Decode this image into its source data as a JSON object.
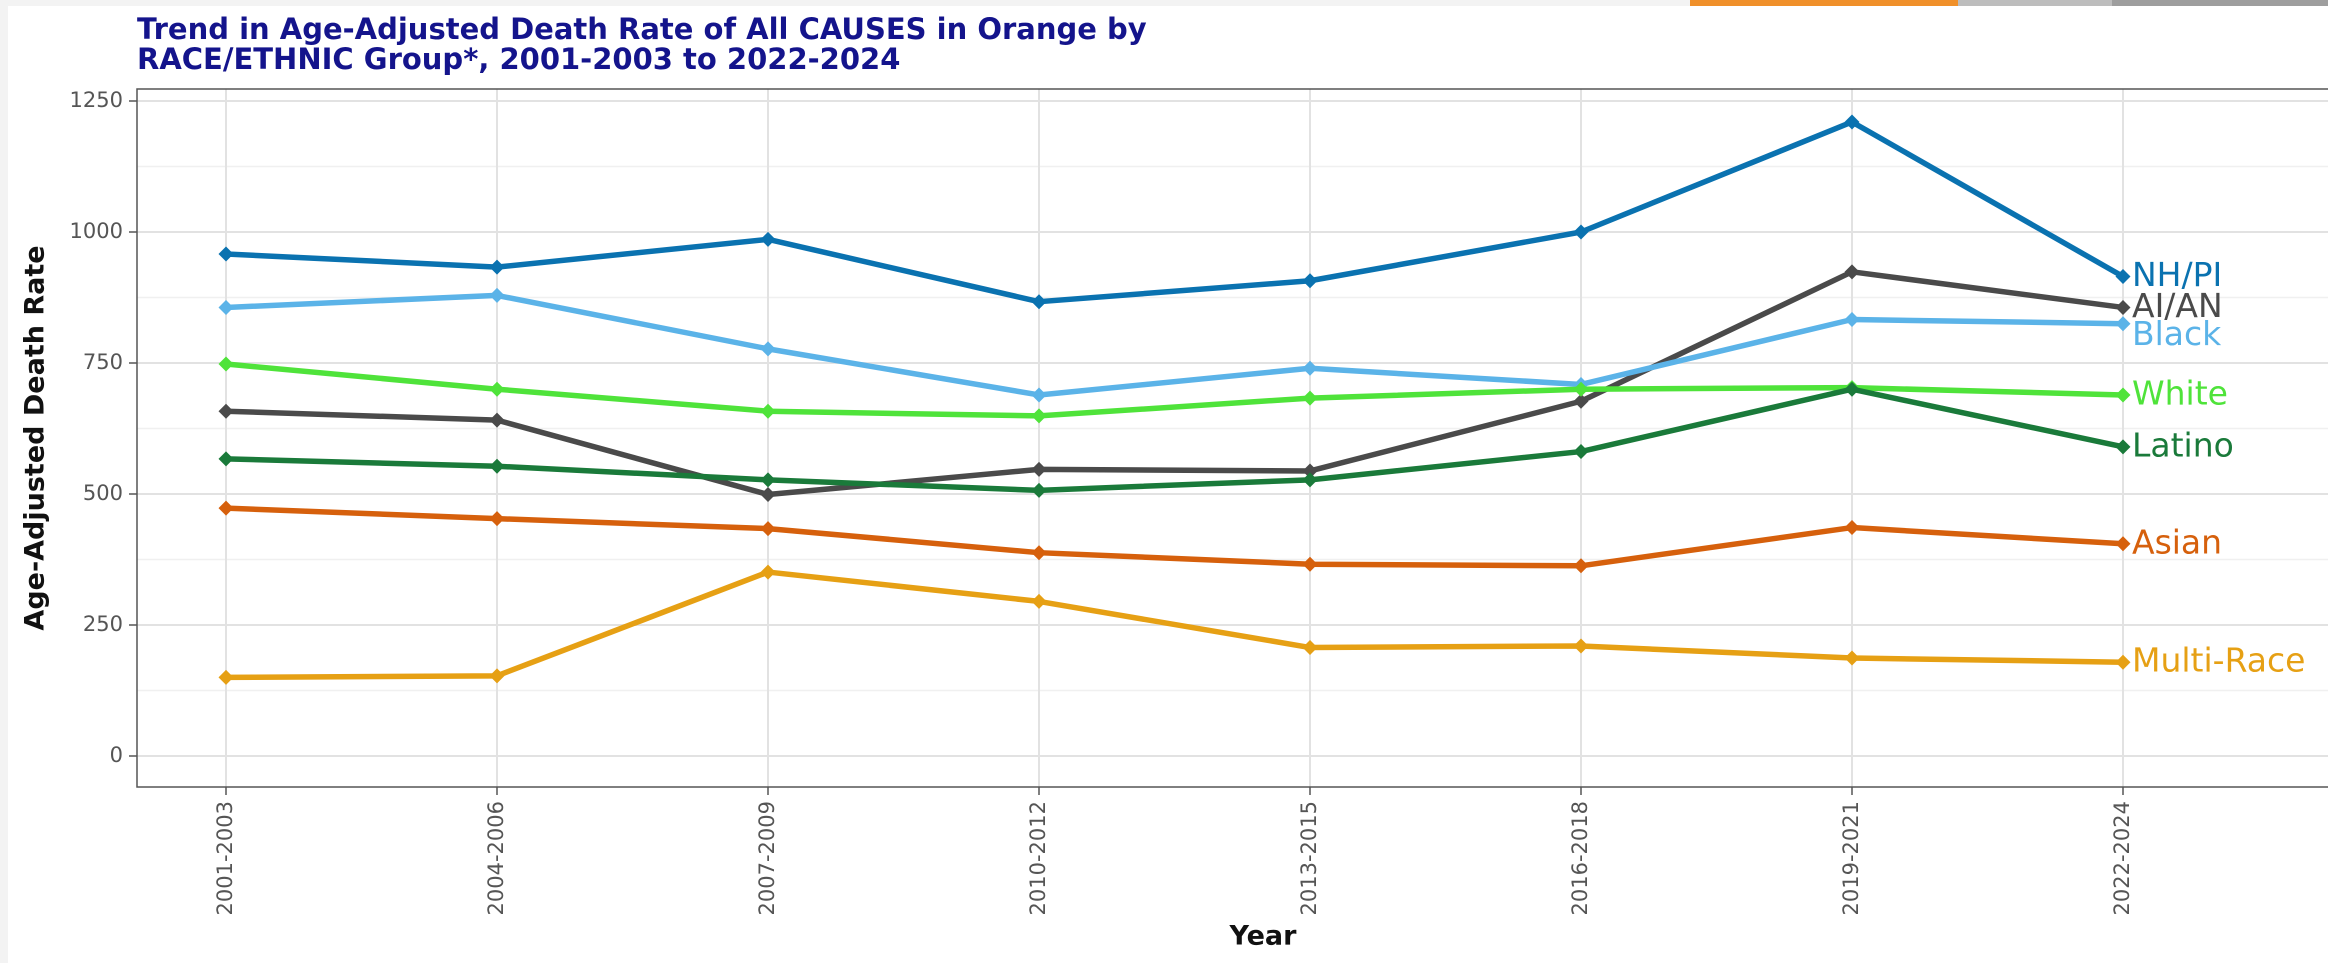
{
  "chart_data": {
    "type": "line",
    "title": [
      "Trend in Age-Adjusted Death Rate of All CAUSES in Orange by",
      "RACE/ETHNIC Group*, 2001-2003 to 2022-2024"
    ],
    "x_label": "Year",
    "y_label": "Age-Adjusted Death Rate",
    "categories": [
      "2001-2003",
      "2004-2006",
      "2007-2009",
      "2010-2012",
      "2013-2015",
      "2016-2018",
      "2019-2021",
      "2022-2024"
    ],
    "ylim": [
      0,
      1250
    ],
    "yticks": [
      0,
      250,
      500,
      750,
      1000,
      1250
    ],
    "grid": true,
    "series": [
      {
        "name": "NH/PI",
        "color": "#0a72b0",
        "values": [
          958,
          933,
          986,
          867,
          907,
          1000,
          1210,
          915
        ]
      },
      {
        "name": "AI/AN",
        "color": "#4a4a4a",
        "values": [
          658,
          641,
          499,
          547,
          544,
          677,
          924,
          856
        ]
      },
      {
        "name": "Black",
        "color": "#5bb3e8",
        "values": [
          856,
          879,
          777,
          689,
          740,
          709,
          833,
          825
        ]
      },
      {
        "name": "White",
        "color": "#4fe33a",
        "values": [
          748,
          700,
          658,
          649,
          683,
          700,
          703,
          689
        ]
      },
      {
        "name": "Latino",
        "color": "#1a7a3a",
        "values": [
          567,
          553,
          527,
          507,
          527,
          581,
          700,
          590
        ]
      },
      {
        "name": "Asian",
        "color": "#d6600c",
        "values": [
          473,
          453,
          434,
          388,
          366,
          363,
          436,
          405
        ]
      },
      {
        "name": "Multi-Race",
        "color": "#e6a014",
        "values": [
          150,
          153,
          351,
          295,
          207,
          210,
          187,
          179
        ]
      }
    ]
  }
}
